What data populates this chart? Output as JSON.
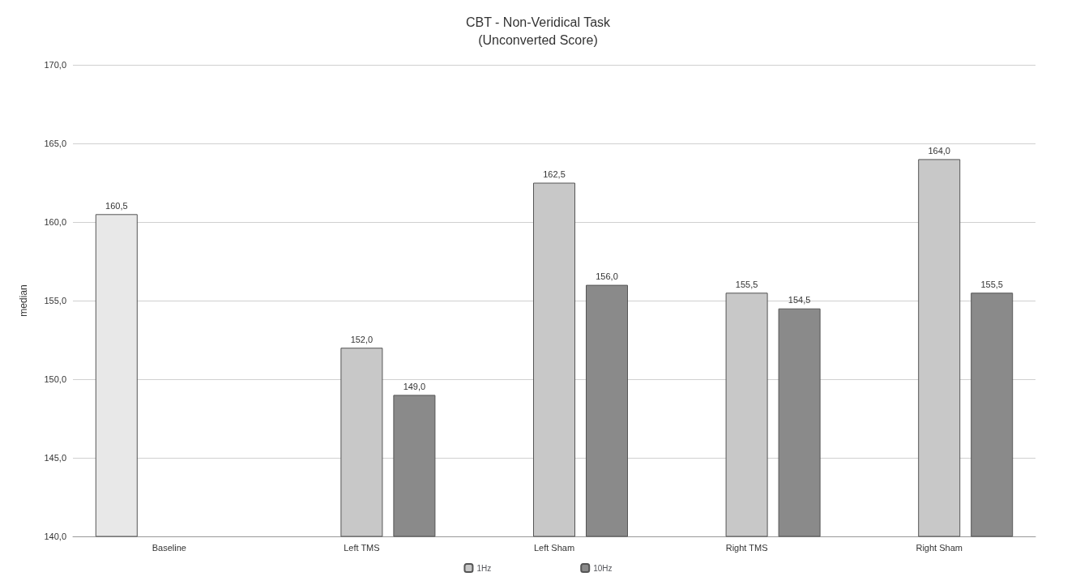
{
  "chart_data": {
    "type": "bar",
    "title": "CBT - Non-Veridical Task",
    "subtitle": "(Unconverted Score)",
    "ylabel": "median",
    "categories": [
      "Baseline",
      "Left TMS",
      "Left Sham",
      "Right TMS",
      "Right Sham"
    ],
    "series": [
      {
        "color": "#e8e8e8",
        "values": [
          160.5,
          null,
          null,
          null,
          null
        ],
        "value_labels": [
          "160,5",
          null,
          null,
          null,
          null
        ]
      },
      {
        "name": "1Hz",
        "color": "#c8c8c8",
        "values": [
          null,
          152.0,
          162.5,
          155.5,
          164.0
        ],
        "value_labels": [
          null,
          "152,0",
          "162,5",
          "155,5",
          "164,0"
        ]
      },
      {
        "name": "10Hz",
        "color": "#8a8a8a",
        "values": [
          null,
          149.0,
          156.0,
          154.5,
          155.5
        ],
        "value_labels": [
          null,
          "149,0",
          "156,0",
          "154,5",
          "155,5"
        ]
      }
    ],
    "ylim": [
      140,
      170
    ],
    "yticks": [
      {
        "value": 140,
        "label": "140,0"
      },
      {
        "value": 145,
        "label": "145,0"
      },
      {
        "value": 150,
        "label": "150,0"
      },
      {
        "value": 155,
        "label": "155,0"
      },
      {
        "value": 160,
        "label": "160,0"
      },
      {
        "value": 165,
        "label": "165,0"
      },
      {
        "value": 170,
        "label": "170,0"
      }
    ],
    "grid": "y",
    "legend": "bottom"
  }
}
